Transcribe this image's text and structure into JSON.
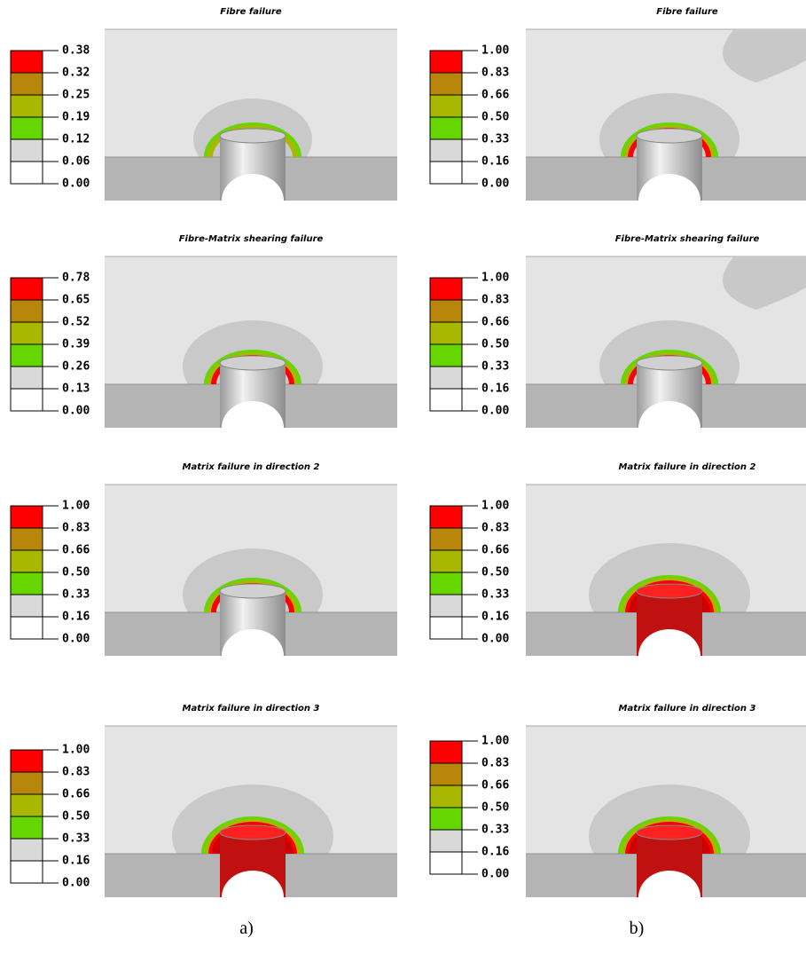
{
  "columns": [
    {
      "label": "a)",
      "panels": [
        {
          "title": "Fibre failure",
          "legend": [
            "0.38",
            "0.32",
            "0.25",
            "0.19",
            "0.12",
            "0.06",
            "0.00"
          ]
        },
        {
          "title": "Fibre-Matrix shearing failure",
          "legend": [
            "0.78",
            "0.65",
            "0.52",
            "0.39",
            "0.26",
            "0.13",
            "0.00"
          ]
        },
        {
          "title": "Matrix failure in direction 2",
          "legend": [
            "1.00",
            "0.83",
            "0.66",
            "0.50",
            "0.33",
            "0.16",
            "0.00"
          ]
        },
        {
          "title": "Matrix failure in direction 3",
          "legend": [
            "1.00",
            "0.83",
            "0.66",
            "0.50",
            "0.33",
            "0.16",
            "0.00"
          ]
        }
      ]
    },
    {
      "label": "b)",
      "panels": [
        {
          "title": "Fibre failure",
          "legend": [
            "1.00",
            "0.83",
            "0.66",
            "0.50",
            "0.33",
            "0.16",
            "0.00"
          ]
        },
        {
          "title": "Fibre-Matrix shearing failure",
          "legend": [
            "1.00",
            "0.83",
            "0.66",
            "0.50",
            "0.33",
            "0.16",
            "0.00"
          ]
        },
        {
          "title": "Matrix failure in direction 2",
          "legend": [
            "1.00",
            "0.83",
            "0.66",
            "0.50",
            "0.33",
            "0.16",
            "0.00"
          ]
        },
        {
          "title": "Matrix failure in direction 3",
          "legend": [
            "1.00",
            "0.83",
            "0.66",
            "0.50",
            "0.33",
            "0.16",
            "0.00"
          ]
        }
      ]
    }
  ]
}
